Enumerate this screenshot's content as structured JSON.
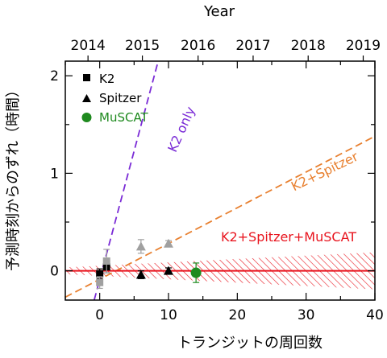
{
  "chart_data": {
    "type": "scatter",
    "title": "",
    "xlabel": "トランジットの周回数",
    "ylabel": "予測時刻からのずれ（時間）",
    "top_axis_label": "Year",
    "xlim": [
      -5,
      40
    ],
    "ylim": [
      -0.3,
      2.15
    ],
    "x_ticks": [
      "0",
      "10",
      "20",
      "30",
      "40"
    ],
    "y_ticks": [
      "0",
      "1",
      "2"
    ],
    "top_ticks": [
      {
        "label": "2014",
        "x": -1.7
      },
      {
        "label": "2015",
        "x": 6.2
      },
      {
        "label": "2016",
        "x": 14.3
      },
      {
        "label": "2017",
        "x": 22.3
      },
      {
        "label": "2018",
        "x": 30.3
      },
      {
        "label": "2019",
        "x": 38.3
      }
    ],
    "legend": {
      "position": "top-left",
      "entries": [
        {
          "label": "K2",
          "marker": "square",
          "color": "#000000"
        },
        {
          "label": "Spitzer",
          "marker": "triangle",
          "color": "#000000"
        },
        {
          "label": "MuSCAT",
          "marker": "circle",
          "color": "#1f8a1f"
        }
      ]
    },
    "series": [
      {
        "name": "K2",
        "marker": "square",
        "color": "#000000",
        "points": [
          {
            "x": 0,
            "y": -0.03,
            "err": 0.05
          },
          {
            "x": 1,
            "y": 0.04,
            "err": 0.06
          }
        ]
      },
      {
        "name": "K2",
        "marker": "square",
        "color": "#a0a0a0",
        "points": [
          {
            "x": 0,
            "y": -0.12,
            "err": 0.06
          },
          {
            "x": 1,
            "y": 0.1,
            "err": 0.12
          }
        ]
      },
      {
        "name": "Spitzer",
        "marker": "triangle",
        "color": "#000000",
        "points": [
          {
            "x": 6,
            "y": -0.04,
            "err": 0.04
          },
          {
            "x": 10,
            "y": 0.0,
            "err": 0.03
          }
        ]
      },
      {
        "name": "Spitzer",
        "marker": "triangle",
        "color": "#a0a0a0",
        "points": [
          {
            "x": 6,
            "y": 0.25,
            "err": 0.07
          },
          {
            "x": 10,
            "y": 0.28,
            "err": 0.03
          }
        ]
      },
      {
        "name": "MuSCAT",
        "marker": "circle",
        "color": "#1f8a1f",
        "points": [
          {
            "x": 14,
            "y": -0.02,
            "err": 0.1
          }
        ]
      }
    ],
    "lines": [
      {
        "label": "K2 only",
        "color": "#7a2bd6",
        "dash": "dashed",
        "from": [
          -0.8,
          -0.3
        ],
        "to": [
          8.5,
          2.15
        ]
      },
      {
        "label": "K2+Spitzer",
        "color": "#e88030",
        "dash": "dashed",
        "from": [
          -5,
          -0.27
        ],
        "to": [
          40,
          1.38
        ]
      },
      {
        "label": "K2+Spitzer+MuSCAT",
        "color": "#e8141e",
        "dash": "solid",
        "from": [
          -5,
          0
        ],
        "to": [
          40,
          0
        ]
      }
    ],
    "band": {
      "label": "K2+Spitzer+MuSCAT",
      "color": "#e8141e",
      "half_width_start": 0.035,
      "half_width_end": 0.19,
      "x_start": -5,
      "x_end": 40
    },
    "grid": false
  }
}
